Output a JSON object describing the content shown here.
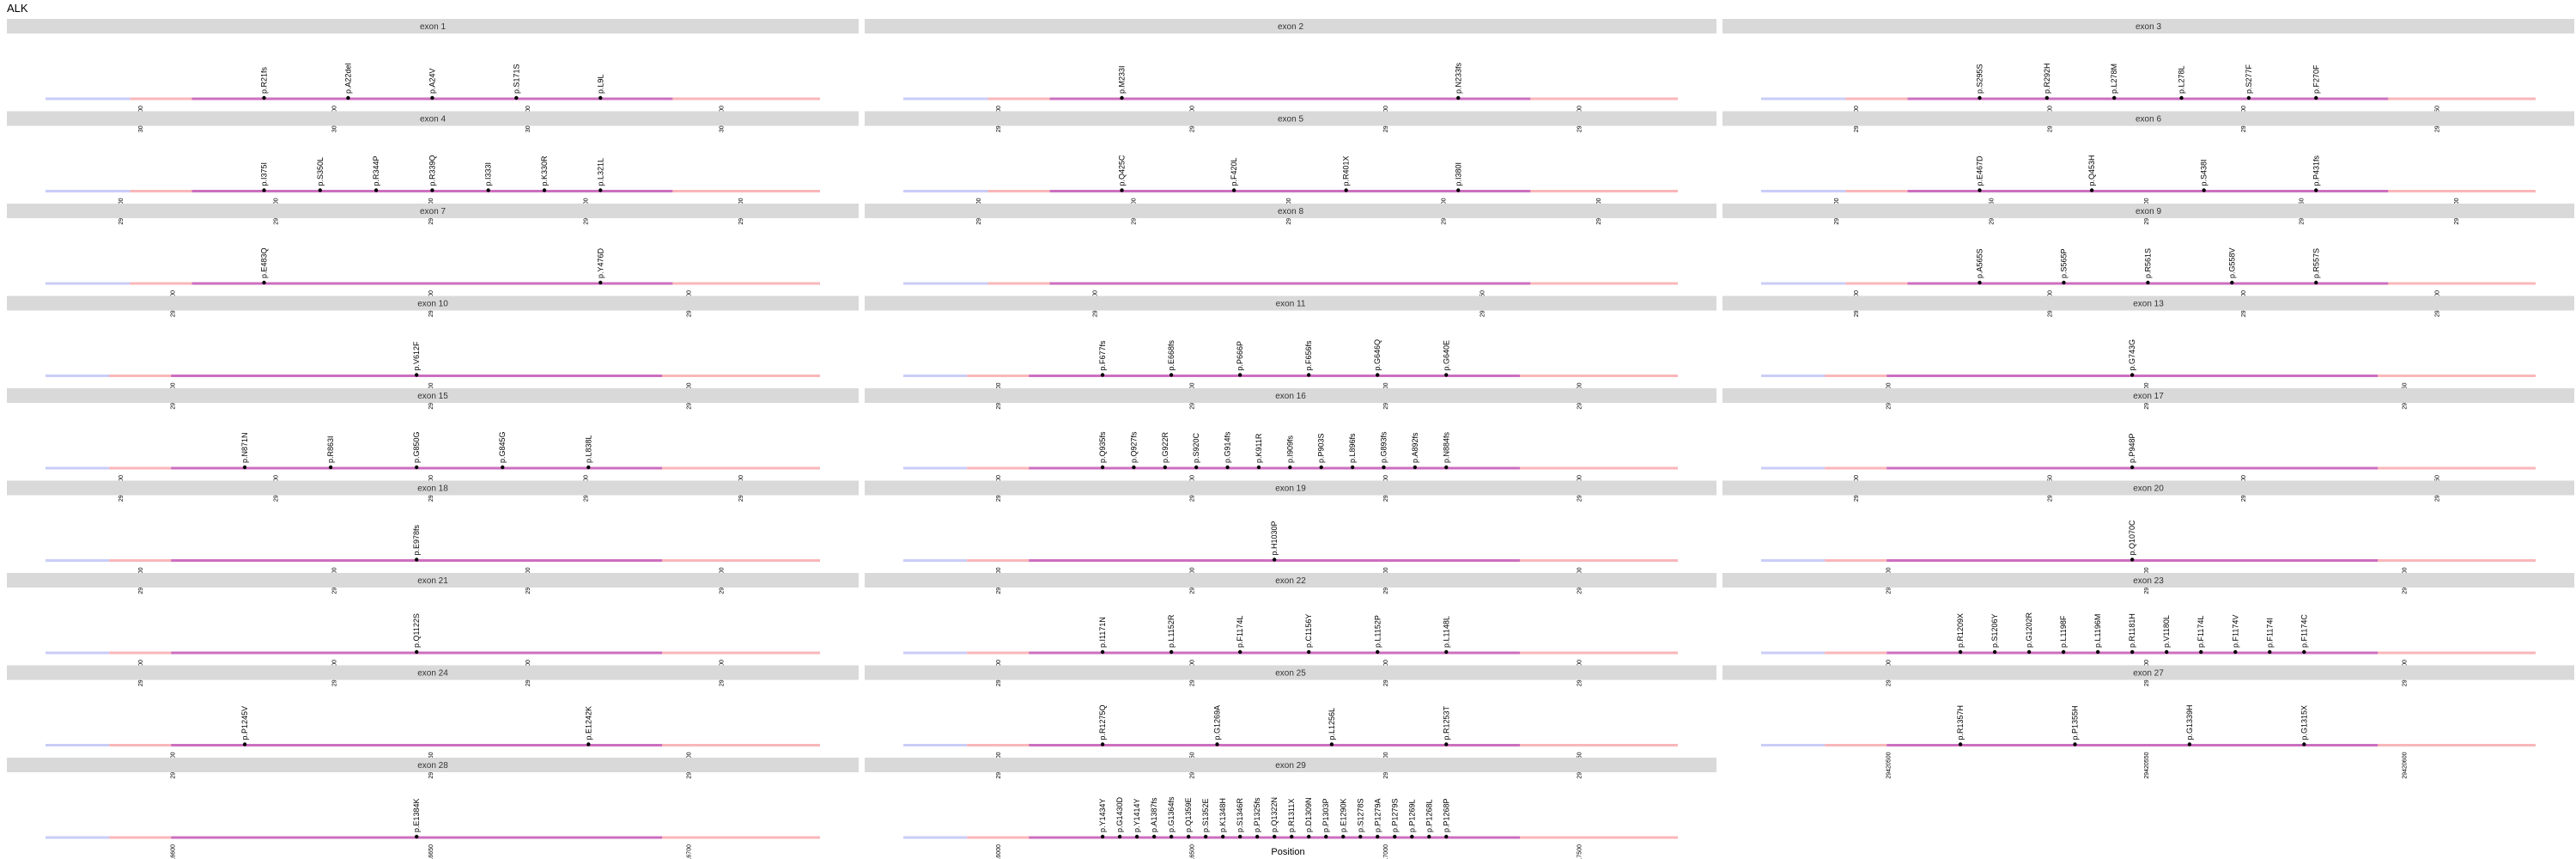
{
  "title": "ALK",
  "xlabel": "Position",
  "chart_data": {
    "type": "scatter",
    "title": "ALK",
    "xlabel": "Position",
    "ylabel": "",
    "colors": {
      "strip_bg": "#d9d9d9",
      "intron_line": "#c9cdf7",
      "flank_line": "#f9b6b9",
      "exon_line": "#cc6fbf",
      "point": "#000000"
    },
    "panels": [
      {
        "label": "exon 1",
        "ticks": [
          "30143000",
          "30143500",
          "30144000",
          "30144500"
        ],
        "mutations": [
          "p.R21fs",
          "p.A22del",
          "p.A24V",
          "p.S171S",
          "p.L9L"
        ]
      },
      {
        "label": "exon 2",
        "ticks": [
          "29986800",
          "29987000",
          "29987200",
          "29987400"
        ],
        "mutations": [
          "p.M233I",
          "p.N233fs"
        ]
      },
      {
        "label": "exon 3",
        "ticks": [
          "29917700",
          "29917800",
          "29917900",
          "29917950"
        ],
        "mutations": [
          "p.S295S",
          "p.R292H",
          "p.L278M",
          "p.L278L",
          "p.S277F",
          "p.F270F"
        ]
      },
      {
        "label": "exon 4",
        "ticks": [
          "29754700",
          "29754800",
          "29754900",
          "29755000",
          "29755100"
        ],
        "mutations": [
          "p.I375I",
          "p.S350L",
          "p.R344P",
          "p.R339Q",
          "p.I333I",
          "p.K330R",
          "p.L321L"
        ]
      },
      {
        "label": "exon 5",
        "ticks": [
          "29606500",
          "29606600",
          "29606700",
          "29606800",
          "29606900"
        ],
        "mutations": [
          "p.Q425C",
          "p.F420L",
          "p.R401X",
          "p.I380I"
        ]
      },
      {
        "label": "exon 6",
        "ticks": [
          "29551200",
          "29551250",
          "29551300",
          "29551350",
          "29551400"
        ],
        "mutations": [
          "p.E467D",
          "p.Q453H",
          "p.S438I",
          "p.P431fs"
        ]
      },
      {
        "label": "exon 7",
        "ticks": [
          "29543600",
          "29543700",
          "29543800"
        ],
        "mutations": [
          "p.E483Q",
          "p.Y476D"
        ]
      },
      {
        "label": "exon 8",
        "ticks": [
          "29541200",
          "29541250"
        ],
        "mutations": []
      },
      {
        "label": "exon 9",
        "ticks": [
          "29519800",
          "29519900",
          "29520000",
          "29520100"
        ],
        "mutations": [
          "p.A565S",
          "p.S565P",
          "p.R561S",
          "p.G558V",
          "p.R557S"
        ]
      },
      {
        "label": "exon 10",
        "ticks": [
          "29498300",
          "29498400",
          "29498500"
        ],
        "mutations": [
          "p.V612F"
        ]
      },
      {
        "label": "exon 11",
        "ticks": [
          "29497900",
          "29498000",
          "29498100",
          "29498200"
        ],
        "mutations": [
          "p.F677fs",
          "p.E668fs",
          "p.P666P",
          "p.F656fs",
          "p.G646Q",
          "p.G640E"
        ]
      },
      {
        "label": "exon 13",
        "ticks": [
          "29462600",
          "29462700",
          "29462750"
        ],
        "mutations": [
          "p.G743G"
        ]
      },
      {
        "label": "exon 15",
        "ticks": [
          "29456100",
          "29456200",
          "29456300",
          "29456400",
          "29456500"
        ],
        "mutations": [
          "p.N871N",
          "p.R863I",
          "p.G850G",
          "p.G845G",
          "p.L838L"
        ]
      },
      {
        "label": "exon 16",
        "ticks": [
          "29455900",
          "29456000",
          "29456100",
          "29456200"
        ],
        "mutations": [
          "p.Q935fs",
          "p.Q927fs",
          "p.G922R",
          "p.S920C",
          "p.G914fs",
          "p.K911R",
          "p.I909fs",
          "p.P903S",
          "p.L896fs",
          "p.G893fs",
          "p.A892fs",
          "p.N884fs"
        ]
      },
      {
        "label": "exon 17",
        "ticks": [
          "29450400",
          "29450450",
          "29450500",
          "29450550"
        ],
        "mutations": [
          "p.P948P"
        ]
      },
      {
        "label": "exon 18",
        "ticks": [
          "29449700",
          "29449800",
          "29449900",
          "29450000"
        ],
        "mutations": [
          "p.E978fs"
        ]
      },
      {
        "label": "exon 19",
        "ticks": [
          "29448100",
          "29448200",
          "29448300",
          "29448400"
        ],
        "mutations": [
          "p.H1030P"
        ]
      },
      {
        "label": "exon 20",
        "ticks": [
          "29446400",
          "29446500",
          "29446600"
        ],
        "mutations": [
          "p.Q1070C"
        ]
      },
      {
        "label": "exon 21",
        "ticks": [
          "29445100",
          "29445200",
          "29445300",
          "29445400"
        ],
        "mutations": [
          "p.Q1122S"
        ]
      },
      {
        "label": "exon 22",
        "ticks": [
          "29443700",
          "29443800",
          "29443900",
          "29444000"
        ],
        "mutations": [
          "p.I1171N",
          "p.L1152R",
          "p.F1174L",
          "p.C1156Y",
          "p.L1152P",
          "p.L1148L"
        ]
      },
      {
        "label": "exon 23",
        "ticks": [
          "29443500",
          "29443600",
          "29443700"
        ],
        "mutations": [
          "p.R1209X",
          "p.S1206Y",
          "p.G1202R",
          "p.L1198F",
          "p.L1196M",
          "p.R1181H",
          "p.V1180L",
          "p.F1174L",
          "p.F1174V",
          "p.F1174I",
          "p.F1174C"
        ]
      },
      {
        "label": "exon 24",
        "ticks": [
          "29436800",
          "29436850",
          "29436900"
        ],
        "mutations": [
          "p.P1245V",
          "p.E1242K"
        ]
      },
      {
        "label": "exon 25",
        "ticks": [
          "29432600",
          "29432650",
          "29432700",
          "29432750"
        ],
        "mutations": [
          "p.R1275Q",
          "p.G1269A",
          "p.L1256L",
          "p.R1253T"
        ]
      },
      {
        "label": "exon 27",
        "ticks": [
          "29420500",
          "29420550",
          "29420600"
        ],
        "mutations": [
          "p.R1357H",
          "p.P1355H",
          "p.G1339H",
          "p.G1315X"
        ]
      },
      {
        "label": "exon 28",
        "ticks": [
          "29416600",
          "29416650",
          "29416700"
        ],
        "mutations": [
          "p.E1384K"
        ]
      },
      {
        "label": "exon 29",
        "ticks": [
          "29416000",
          "29416500",
          "29417000",
          "29417500"
        ],
        "mutations": [
          "p.Y1434Y",
          "p.G1430D",
          "p.Y1414Y",
          "p.A1387fs",
          "p.G1364fs",
          "p.Q1359E",
          "p.S1352E",
          "p.K1348H",
          "p.S1346R",
          "p.P1325fs",
          "p.Q1322N",
          "p.R1311X",
          "p.D1309N",
          "p.P1303P",
          "p.E1290K",
          "p.S1278S",
          "p.P1279A",
          "p.P1279S",
          "p.P1269L",
          "p.P1268L",
          "p.P1268P"
        ]
      }
    ]
  }
}
